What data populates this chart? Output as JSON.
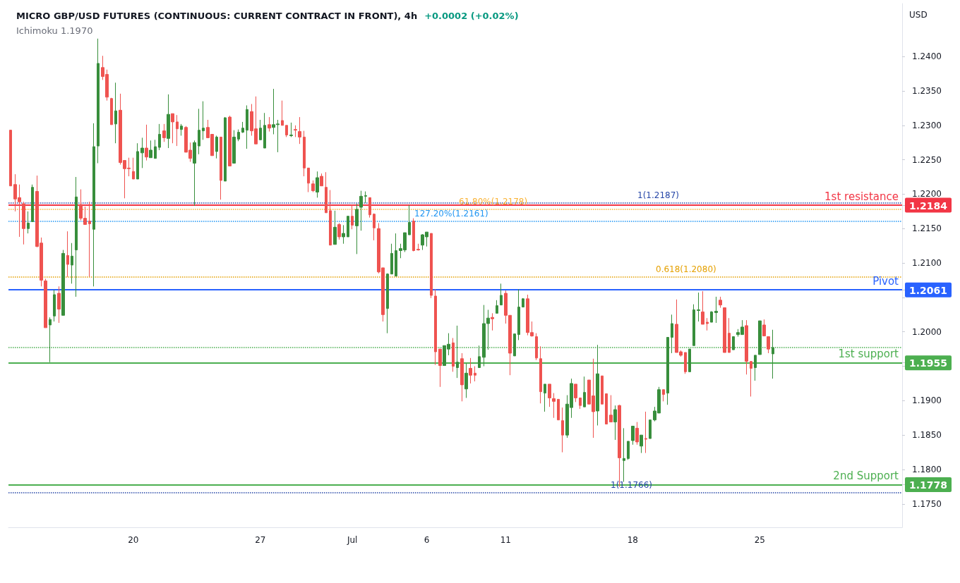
{
  "chart_data": {
    "type": "candlestick",
    "title": "MICRO GBP/USD FUTURES (CONTINUOUS: CURRENT CONTRACT IN FRONT), 4h",
    "subtitle": "Ichimoku 1.1970",
    "annotations": [
      "+0.0002 (+0.02%)"
    ],
    "ylabel": "USD",
    "categories": [
      null,
      null,
      null,
      null,
      null,
      null,
      null,
      null,
      null,
      null,
      null,
      null,
      null,
      null,
      null,
      null,
      null,
      null,
      null,
      null,
      null,
      null,
      null,
      null,
      null,
      null,
      null,
      null,
      "20",
      null,
      null,
      null,
      null,
      null,
      null,
      null,
      null,
      null,
      null,
      null,
      null,
      null,
      null,
      null,
      null,
      null,
      null,
      null,
      null,
      null,
      null,
      null,
      null,
      null,
      null,
      null,
      null,
      "27",
      null,
      null,
      null,
      null,
      null,
      null,
      null,
      null,
      null,
      null,
      null,
      null,
      null,
      null,
      null,
      null,
      null,
      null,
      null,
      null,
      "Jul",
      null,
      null,
      null,
      null,
      null,
      null,
      null,
      null,
      null,
      null,
      null,
      null,
      null,
      null,
      null,
      null,
      "6",
      null,
      null,
      null,
      null,
      null,
      null,
      null,
      null,
      null,
      null,
      null,
      null,
      null,
      null,
      null,
      null,
      null,
      "11",
      null,
      null,
      null,
      null,
      null,
      null,
      null,
      null,
      null,
      null,
      null,
      null,
      null,
      null,
      null,
      null,
      null,
      null,
      null,
      null,
      null,
      null,
      null,
      null,
      null,
      null,
      null,
      null,
      "18",
      null,
      null,
      null,
      null,
      null,
      null,
      null,
      null,
      null,
      null,
      null,
      null,
      null,
      null,
      null,
      null,
      null,
      null,
      null,
      null,
      null,
      null,
      null,
      null,
      null,
      null,
      null,
      null,
      "25",
      null,
      null,
      null,
      null,
      null,
      null,
      null,
      null,
      null,
      null,
      null,
      null,
      null,
      null,
      null,
      null,
      null,
      null,
      null,
      null,
      null,
      null,
      null,
      null,
      null,
      null,
      null,
      null,
      null,
      null,
      null,
      null
    ],
    "ohlc": [
      [
        1.2293,
        1.2293,
        1.2212,
        1.2212
      ],
      [
        1.2214,
        1.2229,
        1.2175,
        1.2193
      ],
      [
        1.2195,
        1.2214,
        1.2138,
        1.2189
      ],
      [
        1.2186,
        1.2189,
        1.2127,
        1.215
      ],
      [
        1.215,
        1.2175,
        1.2143,
        1.2158
      ],
      [
        1.216,
        1.2214,
        1.216,
        1.221
      ],
      [
        1.2204,
        1.2227,
        1.2123,
        1.2124
      ],
      [
        1.2129,
        1.2137,
        1.2066,
        1.2075
      ],
      [
        1.2074,
        1.2077,
        1.2006,
        1.2006
      ],
      [
        1.201,
        1.2021,
        1.1956,
        1.2018
      ],
      [
        1.2023,
        1.2061,
        1.2015,
        1.2054
      ],
      [
        1.2056,
        1.2066,
        1.2013,
        1.2033
      ],
      [
        1.2024,
        1.2119,
        1.2024,
        1.2114
      ],
      [
        1.2111,
        1.2146,
        1.208,
        1.2098
      ],
      [
        1.2097,
        1.2129,
        1.207,
        1.211
      ],
      [
        1.2119,
        1.2225,
        1.2051,
        1.2196
      ],
      [
        1.2185,
        1.2207,
        1.2162,
        1.2165
      ],
      [
        1.2165,
        1.2182,
        1.2156,
        1.2156
      ],
      [
        1.2161,
        1.2189,
        1.208,
        1.2157
      ],
      [
        1.2149,
        1.2303,
        1.2066,
        1.2269
      ],
      [
        1.227,
        1.2426,
        1.2245,
        1.239
      ],
      [
        1.2384,
        1.2401,
        1.2366,
        1.2371
      ],
      [
        1.2374,
        1.2381,
        1.2336,
        1.2341
      ],
      [
        1.2339,
        1.234,
        1.2301,
        1.2301
      ],
      [
        1.2302,
        1.2362,
        1.2274,
        1.2321
      ],
      [
        1.2322,
        1.2346,
        1.2243,
        1.2246
      ],
      [
        1.2249,
        1.2249,
        1.2194,
        1.2237
      ],
      [
        1.2238,
        1.2253,
        1.2226,
        1.2237
      ],
      [
        1.2233,
        1.2253,
        1.2222,
        1.2222
      ],
      [
        1.2222,
        1.2274,
        1.2222,
        1.2262
      ],
      [
        1.226,
        1.2282,
        1.2238,
        1.2267
      ],
      [
        1.2267,
        1.2301,
        1.2249,
        1.2254
      ],
      [
        1.2253,
        1.2278,
        1.2253,
        1.2264
      ],
      [
        1.2252,
        1.2279,
        1.2252,
        1.2269
      ],
      [
        1.2268,
        1.2302,
        1.2264,
        1.2287
      ],
      [
        1.2292,
        1.2302,
        1.2276,
        1.2282
      ],
      [
        1.2281,
        1.2345,
        1.2267,
        1.2316
      ],
      [
        1.2317,
        1.2317,
        1.2274,
        1.2305
      ],
      [
        1.2305,
        1.2315,
        1.227,
        1.2295
      ],
      [
        1.2294,
        1.2302,
        1.2285,
        1.2299
      ],
      [
        1.2297,
        1.2299,
        1.2261,
        1.2261
      ],
      [
        1.2264,
        1.2275,
        1.2247,
        1.2252
      ],
      [
        1.2245,
        1.2278,
        1.2183,
        1.2275
      ],
      [
        1.227,
        1.2324,
        1.2258,
        1.2293
      ],
      [
        1.2292,
        1.2335,
        1.2279,
        1.2296
      ],
      [
        1.2297,
        1.2308,
        1.2282,
        1.2282
      ],
      [
        1.2287,
        1.2287,
        1.2256,
        1.2256
      ],
      [
        1.2262,
        1.2285,
        1.2252,
        1.2283
      ],
      [
        1.2283,
        1.2283,
        1.2192,
        1.222
      ],
      [
        1.2219,
        1.2312,
        1.2219,
        1.2311
      ],
      [
        1.2312,
        1.2314,
        1.2241,
        1.2241
      ],
      [
        1.2245,
        1.2293,
        1.2245,
        1.2283
      ],
      [
        1.228,
        1.2294,
        1.2277,
        1.229
      ],
      [
        1.229,
        1.2305,
        1.2289,
        1.2296
      ],
      [
        1.2293,
        1.2329,
        1.2266,
        1.2323
      ],
      [
        1.232,
        1.2331,
        1.2285,
        1.2292
      ],
      [
        1.2295,
        1.2342,
        1.2273,
        1.2273
      ],
      [
        1.2279,
        1.2308,
        1.2279,
        1.2296
      ],
      [
        1.2267,
        1.2318,
        1.2267,
        1.23
      ],
      [
        1.2301,
        1.2312,
        1.2291,
        1.2296
      ],
      [
        1.2297,
        1.2353,
        1.2287,
        1.2301
      ],
      [
        1.2301,
        1.2308,
        1.2261,
        1.2302
      ],
      [
        1.2307,
        1.2336,
        1.23,
        1.23
      ],
      [
        1.23,
        1.23,
        1.2283,
        1.2286
      ],
      [
        1.2285,
        1.2304,
        1.2283,
        1.2286
      ],
      [
        1.2294,
        1.23,
        1.2283,
        1.2293
      ],
      [
        1.2291,
        1.2312,
        1.2273,
        1.2283
      ],
      [
        1.2283,
        1.2292,
        1.2226,
        1.2238
      ],
      [
        1.2238,
        1.2238,
        1.2203,
        1.2216
      ],
      [
        1.2215,
        1.222,
        1.2203,
        1.2205
      ],
      [
        1.2203,
        1.2233,
        1.2195,
        1.2224
      ],
      [
        1.2226,
        1.223,
        1.2212,
        1.2212
      ],
      [
        1.221,
        1.2232,
        1.2173,
        1.2173
      ],
      [
        1.2176,
        1.2206,
        1.2126,
        1.2126
      ],
      [
        1.2127,
        1.2176,
        1.2127,
        1.2152
      ],
      [
        1.2156,
        1.2158,
        1.2134,
        1.2138
      ],
      [
        1.2138,
        1.2155,
        1.2128,
        1.2143
      ],
      [
        1.2138,
        1.2168,
        1.2138,
        1.2168
      ],
      [
        1.2168,
        1.2185,
        1.2149,
        1.2155
      ],
      [
        1.2154,
        1.2186,
        1.2113,
        1.2178
      ],
      [
        1.2181,
        1.2205,
        1.2147,
        1.2197
      ],
      [
        1.2197,
        1.2204,
        1.2187,
        1.2198
      ],
      [
        1.2195,
        1.2195,
        1.2166,
        1.217
      ],
      [
        1.2171,
        1.2172,
        1.2133,
        1.2151
      ],
      [
        1.215,
        1.2158,
        1.2085,
        1.2087
      ],
      [
        1.2093,
        1.2093,
        1.2015,
        1.2025
      ],
      [
        1.2034,
        1.2085,
        1.1998,
        1.2084
      ],
      [
        1.2084,
        1.2128,
        1.2084,
        1.2114
      ],
      [
        1.2081,
        1.2143,
        1.2081,
        1.2118
      ],
      [
        1.2118,
        1.2128,
        1.2107,
        1.2121
      ],
      [
        1.2119,
        1.2144,
        1.2116,
        1.2144
      ],
      [
        1.2141,
        1.2184,
        1.2141,
        1.2159
      ],
      [
        1.2161,
        1.2165,
        1.2117,
        1.2118
      ],
      [
        1.212,
        1.2128,
        1.2118,
        1.2119
      ],
      [
        1.2126,
        1.2142,
        1.2119,
        1.2141
      ],
      [
        1.2138,
        1.2145,
        1.2124,
        1.2145
      ],
      [
        1.2143,
        1.2143,
        1.2049,
        1.2053
      ],
      [
        1.2052,
        1.2062,
        1.1952,
        1.1971
      ],
      [
        1.1975,
        1.1975,
        1.192,
        1.1951
      ],
      [
        1.1951,
        1.198,
        1.1951,
        1.198
      ],
      [
        1.1975,
        1.1998,
        1.1966,
        1.1982
      ],
      [
        1.1984,
        1.1991,
        1.1942,
        1.195
      ],
      [
        1.1948,
        1.2009,
        1.1933,
        1.1956
      ],
      [
        1.1961,
        1.1969,
        1.1899,
        1.1923
      ],
      [
        1.1917,
        1.1954,
        1.1904,
        1.194
      ],
      [
        1.1947,
        1.1962,
        1.1925,
        1.1937
      ],
      [
        1.194,
        1.195,
        1.1928,
        1.1937
      ],
      [
        1.1948,
        1.198,
        1.1948,
        1.1964
      ],
      [
        1.1963,
        1.2039,
        1.195,
        1.2012
      ],
      [
        1.2012,
        1.2032,
        1.1974,
        1.202
      ],
      [
        1.2021,
        1.2027,
        1.2002,
        1.2019
      ],
      [
        1.2027,
        1.2046,
        1.2027,
        1.2038
      ],
      [
        1.2039,
        1.207,
        1.2039,
        1.2053
      ],
      [
        1.2056,
        1.206,
        1.2012,
        1.2024
      ],
      [
        1.2024,
        1.2024,
        1.1937,
        1.1969
      ],
      [
        1.1965,
        1.1997,
        1.1965,
        1.1997
      ],
      [
        1.1996,
        1.2062,
        1.1988,
        1.2036
      ],
      [
        1.2036,
        1.2049,
        1.2036,
        1.2048
      ],
      [
        1.2048,
        1.2054,
        1.1995,
        1.1999
      ],
      [
        1.1999,
        1.2015,
        1.1993,
        1.1994
      ],
      [
        1.1993,
        1.1998,
        1.1959,
        1.1962
      ],
      [
        1.1961,
        1.1979,
        1.1896,
        1.1913
      ],
      [
        1.1911,
        1.1924,
        1.1884,
        1.1924
      ],
      [
        1.1924,
        1.1924,
        1.1891,
        1.1904
      ],
      [
        1.1903,
        1.1911,
        1.1875,
        1.1899
      ],
      [
        1.1902,
        1.1902,
        1.1872,
        1.1872
      ],
      [
        1.1871,
        1.189,
        1.1825,
        1.185
      ],
      [
        1.185,
        1.1908,
        1.1846,
        1.1895
      ],
      [
        1.189,
        1.1932,
        1.1875,
        1.1925
      ],
      [
        1.1924,
        1.1924,
        1.1898,
        1.1904
      ],
      [
        1.1904,
        1.1904,
        1.1888,
        1.1893
      ],
      [
        1.1891,
        1.1935,
        1.1891,
        1.1912
      ],
      [
        1.193,
        1.193,
        1.1895,
        1.1895
      ],
      [
        1.1907,
        1.1961,
        1.1846,
        1.1884
      ],
      [
        1.1885,
        1.1981,
        1.1864,
        1.1939
      ],
      [
        1.1936,
        1.1936,
        1.1895,
        1.1895
      ],
      [
        1.191,
        1.191,
        1.1866,
        1.1866
      ],
      [
        1.1879,
        1.1908,
        1.1869,
        1.1869
      ],
      [
        1.1869,
        1.1893,
        1.1843,
        1.1887
      ],
      [
        1.1893,
        1.1894,
        1.1775,
        1.1817
      ],
      [
        1.1813,
        1.186,
        1.1782,
        1.1816
      ],
      [
        1.1816,
        1.1841,
        1.1814,
        1.1841
      ],
      [
        1.1842,
        1.1863,
        1.1836,
        1.1863
      ],
      [
        1.186,
        1.1869,
        1.1836,
        1.184
      ],
      [
        1.1834,
        1.185,
        1.1824,
        1.185
      ],
      [
        1.1845,
        1.1884,
        1.1824,
        1.1844
      ],
      [
        1.1845,
        1.1872,
        1.1845,
        1.1872
      ],
      [
        1.1872,
        1.1891,
        1.187,
        1.1885
      ],
      [
        1.1882,
        1.192,
        1.1882,
        1.1916
      ],
      [
        1.1916,
        1.1916,
        1.1899,
        1.1909
      ],
      [
        1.1911,
        1.1992,
        1.1894,
        1.1992
      ],
      [
        1.1992,
        1.2025,
        1.1969,
        1.2012
      ],
      [
        1.2011,
        1.2047,
        1.197,
        1.197
      ],
      [
        1.1971,
        1.1973,
        1.1964,
        1.1966
      ],
      [
        1.197,
        1.197,
        1.1939,
        1.1942
      ],
      [
        1.1942,
        1.1975,
        1.1942,
        1.1975
      ],
      [
        1.198,
        1.204,
        1.198,
        1.2032
      ],
      [
        1.2031,
        1.2057,
        1.2015,
        1.2032
      ],
      [
        1.2029,
        1.2059,
        1.2011,
        1.2011
      ],
      [
        1.2014,
        1.202,
        1.2002,
        1.2012
      ],
      [
        1.2014,
        1.203,
        1.2014,
        1.2029
      ],
      [
        1.2028,
        1.2051,
        1.2013,
        1.203
      ],
      [
        1.2046,
        1.2051,
        1.2035,
        1.2039
      ],
      [
        1.2035,
        1.2035,
        1.197,
        1.197
      ],
      [
        1.1998,
        1.202,
        1.197,
        1.197
      ],
      [
        1.1974,
        1.1993,
        1.1974,
        1.1993
      ],
      [
        1.1996,
        1.2004,
        1.1993,
        1.1999
      ],
      [
        1.1996,
        1.2017,
        1.1996,
        1.2007
      ],
      [
        1.2009,
        1.2017,
        1.1938,
        1.1957
      ],
      [
        1.1957,
        1.1957,
        1.1906,
        1.1947
      ],
      [
        1.1948,
        1.1966,
        1.1929,
        1.1966
      ],
      [
        1.1967,
        1.2016,
        1.1967,
        1.2016
      ],
      [
        1.201,
        1.2018,
        1.1994,
        1.1994
      ],
      [
        1.1993,
        1.1993,
        1.1969,
        1.1975
      ],
      [
        1.1968,
        1.2003,
        1.1932,
        1.1977
      ],
      null,
      null,
      null,
      null,
      null,
      null,
      null,
      null,
      null,
      null,
      null,
      null,
      null,
      null,
      null,
      null,
      null,
      null,
      null,
      null,
      null,
      null,
      null,
      null,
      null,
      null,
      null,
      null,
      null
    ],
    "colors": [
      "#ef5350",
      "#ef5350",
      "#ef5350",
      "#ef5350",
      "#388e3c",
      "#388e3c",
      "#ef5350",
      "#ef5350",
      "#ef5350",
      "#388e3c",
      "#388e3c",
      "#ef5350",
      "#388e3c",
      "#ef5350",
      "#388e3c",
      "#388e3c",
      "#ef5350",
      "#ef5350",
      "#ef5350",
      "#388e3c",
      "#388e3c",
      "#ef5350",
      "#ef5350",
      "#ef5350",
      "#388e3c",
      "#ef5350",
      "#ef5350",
      "#ef5350",
      "#ef5350",
      "#388e3c",
      "#388e3c",
      "#ef5350",
      "#388e3c",
      "#388e3c",
      "#388e3c",
      "#ef5350",
      "#388e3c",
      "#ef5350",
      "#ef5350",
      "#388e3c",
      "#ef5350",
      "#ef5350",
      "#388e3c",
      "#388e3c",
      "#388e3c",
      "#ef5350",
      "#ef5350",
      "#388e3c",
      "#ef5350",
      "#388e3c",
      "#ef5350",
      "#388e3c",
      "#388e3c",
      "#388e3c",
      "#388e3c",
      "#ef5350",
      "#ef5350",
      "#388e3c",
      "#388e3c",
      "#ef5350",
      "#388e3c",
      "#388e3c",
      "#ef5350",
      "#ef5350",
      "#388e3c",
      "#ef5350",
      "#ef5350",
      "#ef5350",
      "#ef5350",
      "#ef5350",
      "#388e3c",
      "#ef5350",
      "#ef5350",
      "#ef5350",
      "#388e3c",
      "#ef5350",
      "#388e3c",
      "#388e3c",
      "#ef5350",
      "#388e3c",
      "#388e3c",
      "#388e3c",
      "#ef5350",
      "#ef5350",
      "#ef5350",
      "#ef5350",
      "#388e3c",
      "#388e3c",
      "#388e3c",
      "#388e3c",
      "#388e3c",
      "#388e3c",
      "#ef5350",
      "#ef5350",
      "#388e3c",
      "#388e3c",
      "#ef5350",
      "#ef5350",
      "#ef5350",
      "#388e3c",
      "#388e3c",
      "#ef5350",
      "#388e3c",
      "#ef5350",
      "#388e3c",
      "#ef5350",
      "#ef5350",
      "#388e3c",
      "#388e3c",
      "#388e3c",
      "#ef5350",
      "#388e3c",
      "#388e3c",
      "#ef5350",
      "#ef5350",
      "#388e3c",
      "#388e3c",
      "#388e3c",
      "#ef5350",
      "#ef5350",
      "#ef5350",
      "#ef5350",
      "#388e3c",
      "#ef5350",
      "#ef5350",
      "#ef5350",
      "#ef5350",
      "#388e3c",
      "#388e3c",
      "#ef5350",
      "#ef5350",
      "#388e3c",
      "#ef5350",
      "#ef5350",
      "#388e3c",
      "#ef5350",
      "#ef5350",
      "#ef5350",
      "#388e3c",
      "#ef5350",
      "#388e3c",
      "#388e3c",
      "#388e3c",
      "#ef5350",
      "#388e3c",
      "#ef5350",
      "#388e3c",
      "#388e3c",
      "#388e3c",
      "#ef5350",
      "#388e3c",
      "#388e3c",
      "#ef5350",
      "#ef5350",
      "#ef5350",
      "#388e3c",
      "#388e3c",
      "#388e3c",
      "#ef5350",
      "#ef5350",
      "#388e3c",
      "#388e3c",
      "#ef5350",
      "#ef5350",
      "#ef5350",
      "#388e3c",
      "#388e3c",
      "#388e3c",
      "#ef5350",
      "#ef5350",
      "#388e3c",
      "#388e3c",
      "#ef5350",
      "#ef5350",
      "#388e3c",
      null,
      null,
      null,
      null,
      null,
      null,
      null,
      null,
      null,
      null,
      null,
      null,
      null,
      null,
      null,
      null,
      null,
      null,
      null,
      null,
      null,
      null,
      null,
      null,
      null,
      null,
      null,
      null,
      null
    ],
    "ylim": [
      1.1716,
      1.2477
    ],
    "yticks": [
      {
        "value": 1.175,
        "label": "1.1750"
      },
      {
        "value": 1.18,
        "label": "1.1800"
      },
      {
        "value": 1.185,
        "label": "1.1850"
      },
      {
        "value": 1.19,
        "label": "1.1900"
      },
      {
        "value": 1.195,
        "label": null
      },
      {
        "value": 1.2,
        "label": "1.2000"
      },
      {
        "value": 1.205,
        "label": null
      },
      {
        "value": 1.21,
        "label": "1.2100"
      },
      {
        "value": 1.215,
        "label": "1.2150"
      },
      {
        "value": 1.22,
        "label": "1.2200"
      },
      {
        "value": 1.225,
        "label": "1.2250"
      },
      {
        "value": 1.23,
        "label": "1.2300"
      },
      {
        "value": 1.235,
        "label": "1.2350"
      },
      {
        "value": 1.24,
        "label": "1.2400"
      }
    ],
    "y2lim": [
      1.1716,
      1.2477
    ],
    "y2ticks": [
      1.2184,
      1.2061,
      1.1955,
      1.1778
    ],
    "ref_lines": [
      {
        "axis": "y",
        "value": 1.2184,
        "label": "1st resistance",
        "color": "#f23645"
      },
      {
        "axis": "y",
        "value": 1.2061,
        "label": "Pivot",
        "color": "#2962ff"
      },
      {
        "axis": "y",
        "value": 1.1955,
        "label": "1st support",
        "color": "#4caf50"
      },
      {
        "axis": "y",
        "value": 1.1778,
        "label": "2nd Support",
        "color": "#4caf50"
      },
      {
        "axis": "y",
        "value": 1.2187,
        "label": "1(1.2187)",
        "color": "#2747a8",
        "line_style": "dotted"
      },
      {
        "axis": "y",
        "value": 1.2178,
        "label": "61.80%(1.2178)",
        "color": "#f9b233",
        "line_style": "dotted"
      },
      {
        "axis": "y",
        "value": 1.2161,
        "label": "127.20%(1.2161)",
        "color": "#2196f3",
        "line_style": "dotted"
      },
      {
        "axis": "y",
        "value": 1.208,
        "label": "0.618(1.2080)",
        "color": "#e5a000",
        "line_style": "dotted"
      },
      {
        "axis": "y",
        "value": 1.1766,
        "label": "1(1.1766)",
        "color": "#2747a8",
        "line_style": "dotted"
      },
      {
        "axis": "y",
        "value": 1.1977,
        "color": "#4caf50",
        "line_style": "dotted"
      }
    ]
  }
}
